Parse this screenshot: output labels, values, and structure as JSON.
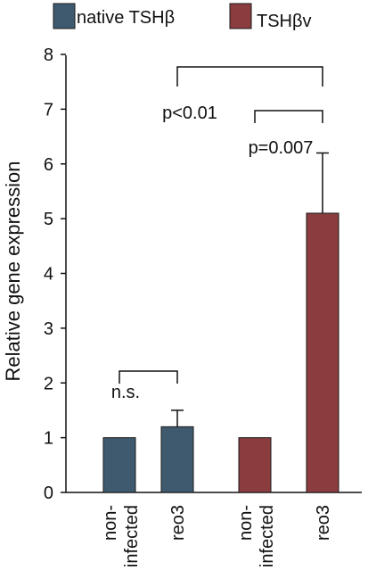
{
  "legend": {
    "items": [
      {
        "label": "native TSHβ",
        "color": "#3f5a6e"
      },
      {
        "label": "TSHβv",
        "color": "#8a3c3f"
      }
    ]
  },
  "chart_data": {
    "type": "bar",
    "ylabel": "Relative gene expression",
    "ylim": [
      0,
      8
    ],
    "yticks": [
      0,
      1,
      2,
      3,
      4,
      5,
      6,
      7,
      8
    ],
    "categories": [
      "non-\ninfected",
      "reo3",
      "non-\ninfected",
      "reo3"
    ],
    "bars": [
      {
        "series": "native TSHβ",
        "category": "non-infected",
        "value": 1.0,
        "error": 0
      },
      {
        "series": "native TSHβ",
        "category": "reo3",
        "value": 1.2,
        "error": 0.3
      },
      {
        "series": "TSHβv",
        "category": "non-infected",
        "value": 1.0,
        "error": 0
      },
      {
        "series": "TSHβv",
        "category": "reo3",
        "value": 5.1,
        "error": 1.1
      }
    ],
    "annotations": [
      {
        "label": "n.s.",
        "between": [
          0,
          1
        ]
      },
      {
        "label": "p=0.007",
        "between": [
          2,
          3
        ]
      },
      {
        "label": "p<0.01",
        "between": [
          1,
          3
        ]
      }
    ],
    "grid": false,
    "legend_position": "top"
  }
}
